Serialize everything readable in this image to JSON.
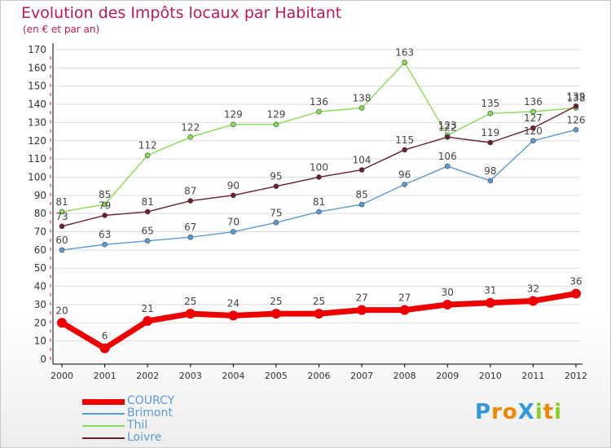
{
  "header": {
    "title": "Evolution des Impôts locaux par Habitant",
    "subtitle": "(en € et par an)"
  },
  "logo_text": "ProXiti",
  "colors": {
    "title": "#c0185e",
    "grid": "#dddddd",
    "axis": "#000000",
    "COURCY": "#ee0000",
    "Brimont": "#5b9bd5",
    "Thil": "#88dd55",
    "Loivre": "#6b1f2a"
  },
  "chart_data": {
    "type": "line",
    "title": "Evolution des Impôts locaux par Habitant",
    "subtitle": "(en € et par an)",
    "xlabel": "",
    "ylabel": "",
    "ylim": [
      0,
      170
    ],
    "ytick_step": 10,
    "grid": true,
    "legend": "bottom-left",
    "categories": [
      "2000",
      "2001",
      "2002",
      "2003",
      "2004",
      "2005",
      "2006",
      "2007",
      "2008",
      "2009",
      "2010",
      "2011",
      "2012"
    ],
    "series": [
      {
        "name": "COURCY",
        "color": "#ee0000",
        "values": [
          20,
          6,
          21,
          25,
          24,
          25,
          25,
          27,
          27,
          30,
          31,
          32,
          36
        ]
      },
      {
        "name": "Brimont",
        "color": "#5b9bd5",
        "values": [
          60,
          63,
          65,
          67,
          70,
          75,
          81,
          85,
          96,
          106,
          98,
          120,
          126
        ]
      },
      {
        "name": "Thil",
        "color": "#88dd55",
        "values": [
          81,
          85,
          112,
          122,
          129,
          129,
          136,
          138,
          163,
          123,
          135,
          136,
          138
        ]
      },
      {
        "name": "Loivre",
        "color": "#6b1f2a",
        "values": [
          73,
          79,
          81,
          87,
          90,
          95,
          100,
          104,
          115,
          122,
          119,
          127,
          139
        ]
      }
    ]
  }
}
